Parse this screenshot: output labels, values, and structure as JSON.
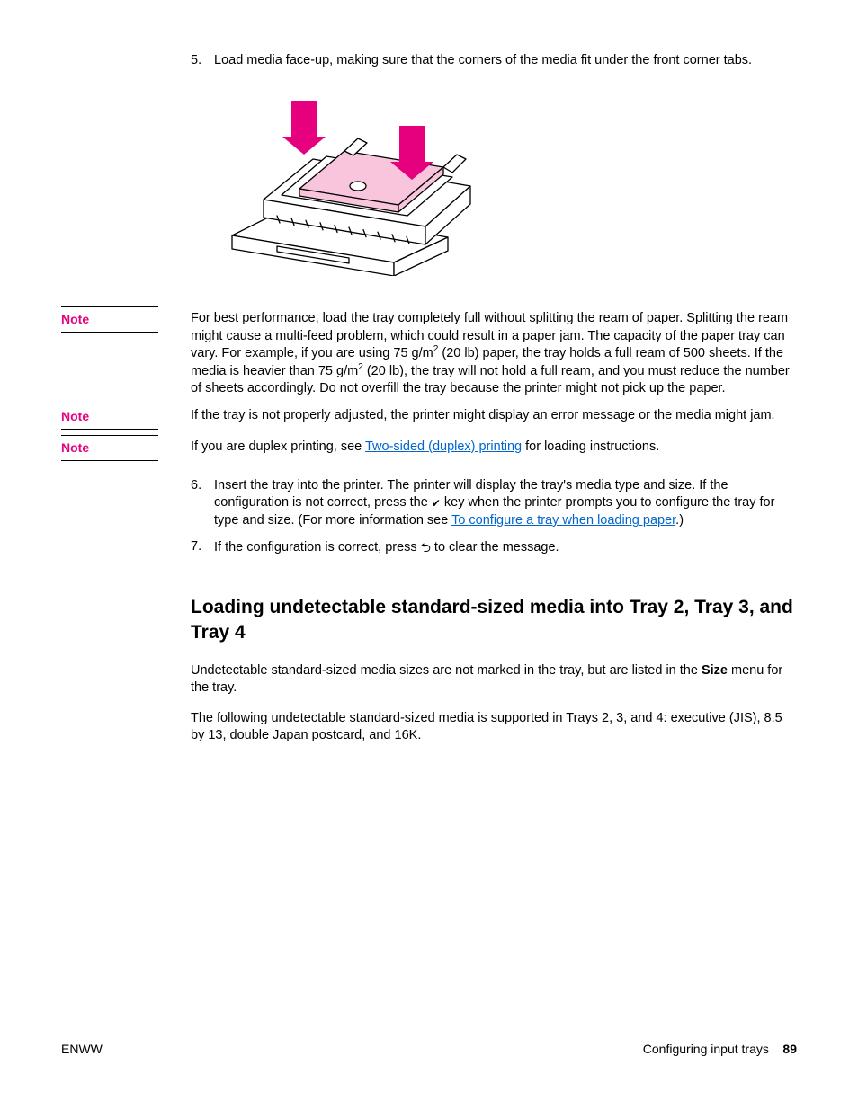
{
  "step5": {
    "num": "5.",
    "text": "Load media face-up, making sure that the corners of the media fit under the front corner tabs."
  },
  "diagram": {
    "arrow_color": "#e6007e",
    "paper_fill": "#f9c5dd",
    "stroke": "#000000",
    "bg": "#ffffff"
  },
  "notes": [
    {
      "label": "Note",
      "body_parts": [
        {
          "t": "text",
          "v": "For best performance, load the tray completely full without splitting the ream of paper. Splitting the ream might cause a multi-feed problem, which could result in a paper jam. The capacity of the paper tray can vary. For example, if you are using 75 g/m"
        },
        {
          "t": "sup",
          "v": "2"
        },
        {
          "t": "text",
          "v": " (20 lb) paper, the tray holds a full ream of 500 sheets. If the media is heavier than 75 g/m"
        },
        {
          "t": "sup",
          "v": "2"
        },
        {
          "t": "text",
          "v": " (20 lb), the tray will not hold a full ream, and you must reduce the number of sheets accordingly. Do not overfill the tray because the printer might not pick up the paper."
        }
      ]
    },
    {
      "label": "Note",
      "body_parts": [
        {
          "t": "text",
          "v": "If the tray is not properly adjusted, the printer might display an error message or the media might jam."
        }
      ]
    },
    {
      "label": "Note",
      "body_parts": [
        {
          "t": "text",
          "v": "If you are duplex printing, see "
        },
        {
          "t": "link",
          "v": "Two-sided (duplex) printing"
        },
        {
          "t": "text",
          "v": " for loading instructions."
        }
      ]
    }
  ],
  "step6": {
    "num": "6.",
    "pre": "Insert the tray into the printer. The printer will display the tray's media type and size. If the configuration is not correct, press the ",
    "mid": " key when the printer prompts you to configure the tray for type and size. (For more information see ",
    "link": "To configure a tray when loading paper",
    "post": ".)"
  },
  "step7": {
    "num": "7.",
    "pre": "If the configuration is correct, press ",
    "post": " to clear the message."
  },
  "heading": "Loading undetectable standard-sized media into Tray 2, Tray 3, and Tray 4",
  "p1": {
    "pre": "Undetectable standard-sized media sizes are not marked in the tray, but are listed in the ",
    "bold": "Size",
    "post": " menu for the tray."
  },
  "p2": "The following undetectable standard-sized media is supported in Trays 2, 3, and 4: executive (JIS), 8.5 by 13, double Japan postcard, and 16K.",
  "footer": {
    "left": "ENWW",
    "right_label": "Configuring input trays",
    "page": "89"
  }
}
